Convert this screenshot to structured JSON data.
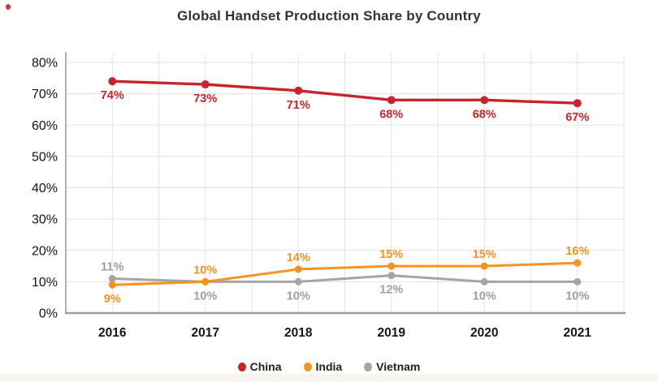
{
  "page": {
    "background": "#ffffff",
    "bottom_strip_color": "#f8f4ef",
    "corner_marker_color": "#c9242c"
  },
  "chart_data": {
    "type": "line",
    "title": "Global Handset Production Share by Country",
    "categories": [
      "2016",
      "2017",
      "2018",
      "2019",
      "2020",
      "2021"
    ],
    "series": [
      {
        "name": "Vietnam",
        "color": "#a5a5a5",
        "label_color": "#9e9e9e",
        "values": [
          11,
          10,
          10,
          12,
          10,
          10
        ],
        "data_labels": [
          "11%",
          "10%",
          "10%",
          "12%",
          "10%",
          "10%"
        ],
        "label_positions": [
          "above",
          "below",
          "below",
          "below",
          "below",
          "below"
        ]
      },
      {
        "name": "India",
        "color": "#f6921e",
        "label_color": "#f6921e",
        "values": [
          9,
          10,
          14,
          15,
          15,
          16
        ],
        "data_labels": [
          "9%",
          "10%",
          "14%",
          "15%",
          "15%",
          "16%"
        ],
        "label_positions": [
          "below",
          "above",
          "above",
          "above",
          "above",
          "above"
        ]
      },
      {
        "name": "China",
        "color": "#c9242c",
        "label_color": "#c9242c",
        "values": [
          74,
          73,
          71,
          68,
          68,
          67
        ],
        "data_labels": [
          "74%",
          "73%",
          "71%",
          "68%",
          "68%",
          "67%"
        ],
        "label_positions": [
          "below",
          "below",
          "below",
          "below",
          "below",
          "below"
        ]
      }
    ],
    "legend": [
      "China",
      "India",
      "Vietnam"
    ],
    "legend_position": "bottom",
    "y_ticks": [
      0,
      10,
      20,
      30,
      40,
      50,
      60,
      70,
      80
    ],
    "y_tick_labels": [
      "0%",
      "10%",
      "20%",
      "30%",
      "40%",
      "50%",
      "60%",
      "70%",
      "80%"
    ],
    "ylim": [
      0,
      84
    ],
    "grid": true,
    "axis_color": "#9c9c9c",
    "grid_color": "#e3e3e3",
    "tick_label_color": "#141414"
  }
}
